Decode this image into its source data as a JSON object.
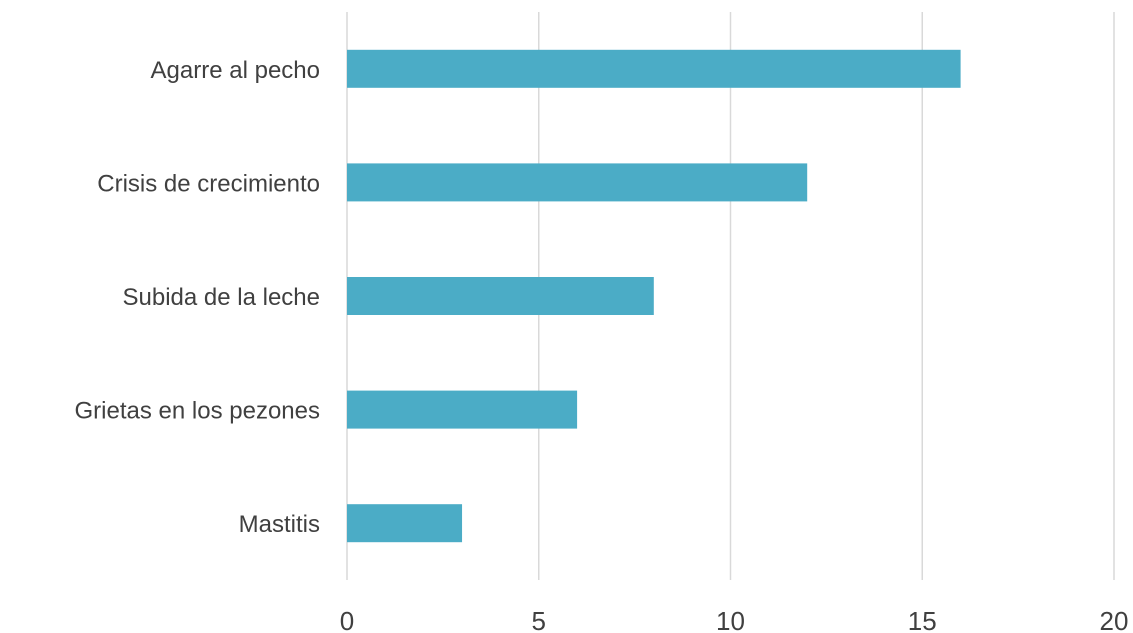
{
  "chart_data": {
    "type": "bar",
    "orientation": "horizontal",
    "categories": [
      "Agarre al pecho",
      "Crisis de crecimiento",
      "Subida de la leche",
      "Grietas en los pezones",
      "Mastitis"
    ],
    "values": [
      16,
      12,
      8,
      6,
      3
    ],
    "xlim": [
      0,
      20
    ],
    "xticks": [
      "0",
      "5",
      "10",
      "15",
      "20"
    ],
    "grid": "vertical",
    "bar_color": "#4bacc6",
    "title": "",
    "xlabel": "",
    "ylabel": ""
  }
}
